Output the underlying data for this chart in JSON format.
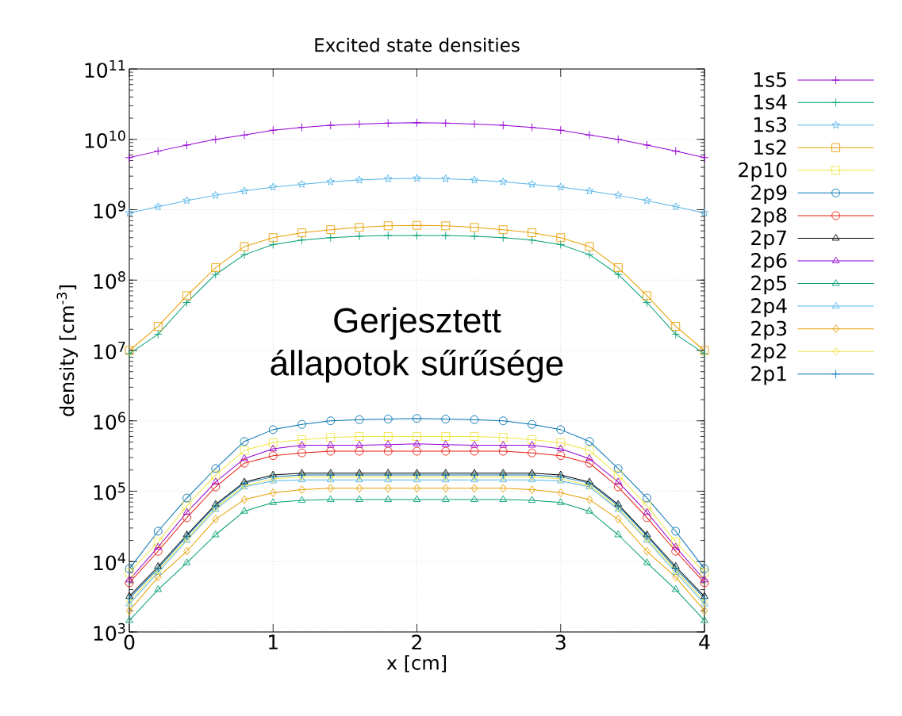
{
  "chart_data": {
    "type": "line",
    "title": "Excited state densities",
    "xlabel": "x [cm]",
    "ylabel": "density [cm$^{-3}$]",
    "annotations": [
      "Gerjesztett állapotok sűrűsége"
    ],
    "x": [
      0,
      0.2,
      0.4,
      0.6,
      0.8,
      1.0,
      1.2,
      1.4,
      1.6,
      1.8,
      2.0,
      2.2,
      2.4,
      2.6,
      2.8,
      3.0,
      3.2,
      3.4,
      3.6,
      3.8,
      4.0
    ],
    "log": "y",
    "grid": true,
    "legend": "right",
    "xlim": [
      0,
      4
    ],
    "xticks": [
      0,
      1,
      2,
      3,
      4
    ],
    "ylim": [
      1000,
      100000000000
    ],
    "yticks": [
      {
        "value": 1000,
        "label": "10$^{3}$"
      },
      {
        "value": 10000,
        "label": "10$^{4}$"
      },
      {
        "value": 100000,
        "label": "10$^{5}$"
      },
      {
        "value": 1000000,
        "label": "10$^{6}$"
      },
      {
        "value": 10000000,
        "label": "10$^{7}$"
      },
      {
        "value": 100000000,
        "label": "10$^{8}$"
      },
      {
        "value": 1000000000,
        "label": "10$^{9}$"
      },
      {
        "value": 10000000000,
        "label": "10$^{10}$"
      },
      {
        "value": 100000000000,
        "label": "10$^{11}$"
      }
    ],
    "series": [
      {
        "name": "1s5",
        "color": "#9400d3",
        "marker": "cross",
        "values": [
          5500000000.0,
          6800000000.0,
          8300000000.0,
          10000000000.0,
          11500000000.0,
          13500000000.0,
          14800000000.0,
          15800000000.0,
          16500000000.0,
          17000000000.0,
          17200000000.0,
          17000000000.0,
          16500000000.0,
          15800000000.0,
          14800000000.0,
          13500000000.0,
          11500000000.0,
          10000000000.0,
          8300000000.0,
          6800000000.0,
          5500000000.0
        ]
      },
      {
        "name": "1s4",
        "color": "#009e73",
        "marker": "cross",
        "values": [
          9000000.0,
          17000000.0,
          48000000.0,
          120000000.0,
          230000000.0,
          320000000.0,
          370000000.0,
          400000000.0,
          420000000.0,
          430000000.0,
          430000000.0,
          430000000.0,
          420000000.0,
          400000000.0,
          370000000.0,
          320000000.0,
          230000000.0,
          120000000.0,
          48000000.0,
          17000000.0,
          9000000.0
        ]
      },
      {
        "name": "1s3",
        "color": "#56b4e9",
        "marker": "star",
        "values": [
          900000000.0,
          1100000000.0,
          1350000000.0,
          1600000000.0,
          1850000000.0,
          2100000000.0,
          2300000000.0,
          2500000000.0,
          2650000000.0,
          2750000000.0,
          2800000000.0,
          2750000000.0,
          2650000000.0,
          2500000000.0,
          2300000000.0,
          2100000000.0,
          1850000000.0,
          1600000000.0,
          1350000000.0,
          1100000000.0,
          900000000.0
        ]
      },
      {
        "name": "1s2",
        "color": "#e69f00",
        "marker": "square",
        "values": [
          10000000.0,
          22000000.0,
          60000000.0,
          150000000.0,
          300000000.0,
          400000000.0,
          470000000.0,
          520000000.0,
          560000000.0,
          590000000.0,
          600000000.0,
          590000000.0,
          560000000.0,
          520000000.0,
          470000000.0,
          400000000.0,
          300000000.0,
          150000000.0,
          60000000.0,
          22000000.0,
          10000000.0
        ]
      },
      {
        "name": "2p10",
        "color": "#f0e442",
        "marker": "square",
        "values": [
          7000.0,
          19000.0,
          62000.0,
          170000.0,
          380000.0,
          490000.0,
          540000.0,
          580000.0,
          600000.0,
          600000.0,
          600000.0,
          600000.0,
          600000.0,
          580000.0,
          540000.0,
          490000.0,
          380000.0,
          170000.0,
          62000.0,
          19000.0,
          7000.0
        ]
      },
      {
        "name": "2p9",
        "color": "#0072b2",
        "marker": "circle",
        "values": [
          7900.0,
          27000.0,
          80000.0,
          210000.0,
          510000.0,
          750000.0,
          890000.0,
          1000000.0,
          1040000.0,
          1060000.0,
          1080000.0,
          1060000.0,
          1040000.0,
          1000000.0,
          890000.0,
          750000.0,
          510000.0,
          210000.0,
          80000.0,
          27000.0,
          7900.0
        ]
      },
      {
        "name": "2p8",
        "color": "#e51e10",
        "marker": "circle",
        "values": [
          5000.0,
          14000.0,
          42000.0,
          115000.0,
          250000.0,
          320000.0,
          350000.0,
          370000.0,
          370000.0,
          370000.0,
          370000.0,
          370000.0,
          370000.0,
          370000.0,
          350000.0,
          320000.0,
          250000.0,
          115000.0,
          42000.0,
          14000.0,
          5000.0
        ]
      },
      {
        "name": "2p7",
        "color": "#000000",
        "marker": "triangle",
        "values": [
          3200.0,
          8500.0,
          24000.0,
          65000.0,
          135000.0,
          170000.0,
          180000.0,
          180000.0,
          180000.0,
          180000.0,
          180000.0,
          180000.0,
          180000.0,
          180000.0,
          180000.0,
          170000.0,
          135000.0,
          65000.0,
          24000.0,
          8500.0,
          3200.0
        ]
      },
      {
        "name": "2p6",
        "color": "#9400d3",
        "marker": "triangle",
        "values": [
          5500.0,
          16000.0,
          50000.0,
          135000.0,
          290000.0,
          400000.0,
          450000.0,
          450000.0,
          450000.0,
          460000.0,
          470000.0,
          460000.0,
          450000.0,
          450000.0,
          450000.0,
          400000.0,
          290000.0,
          135000.0,
          50000.0,
          16000.0,
          5500.0
        ]
      },
      {
        "name": "2p5",
        "color": "#009e73",
        "marker": "triangle",
        "values": [
          1450.0,
          4000.0,
          9600.0,
          24000.0,
          52000.0,
          69000.0,
          74000.0,
          76000.0,
          76000.0,
          76000.0,
          76000.0,
          76000.0,
          76000.0,
          76000.0,
          74000.0,
          69000.0,
          52000.0,
          24000.0,
          9600.0,
          4000.0,
          1450.0
        ]
      },
      {
        "name": "2p4",
        "color": "#56b4e9",
        "marker": "triangle",
        "values": [
          2500.0,
          7000.0,
          20000.0,
          55000.0,
          115000.0,
          140000.0,
          145000.0,
          145000.0,
          145000.0,
          145000.0,
          145000.0,
          145000.0,
          145000.0,
          145000.0,
          145000.0,
          140000.0,
          115000.0,
          55000.0,
          20000.0,
          7000.0,
          2500.0
        ]
      },
      {
        "name": "2p3",
        "color": "#e69f00",
        "marker": "diamond",
        "values": [
          2000.0,
          6000.0,
          14000.0,
          40000.0,
          76000.0,
          95000.0,
          105000.0,
          110000.0,
          110000.0,
          110000.0,
          110000.0,
          110000.0,
          110000.0,
          110000.0,
          105000.0,
          95000.0,
          76000.0,
          40000.0,
          14000.0,
          6000.0,
          2000.0
        ]
      },
      {
        "name": "2p2",
        "color": "#f0e442",
        "marker": "diamond",
        "values": [
          2700.0,
          7500.0,
          21000.0,
          58000.0,
          120000.0,
          150000.0,
          160000.0,
          160000.0,
          160000.0,
          160000.0,
          160000.0,
          160000.0,
          160000.0,
          160000.0,
          160000.0,
          150000.0,
          120000.0,
          58000.0,
          21000.0,
          7500.0,
          2700.0
        ]
      },
      {
        "name": "2p1",
        "color": "#0072b2",
        "marker": "cross",
        "values": [
          3000.0,
          8000.0,
          23000.0,
          62000.0,
          130000.0,
          160000.0,
          170000.0,
          170000.0,
          170000.0,
          170000.0,
          170000.0,
          170000.0,
          170000.0,
          170000.0,
          170000.0,
          160000.0,
          130000.0,
          62000.0,
          23000.0,
          8000.0,
          3000.0
        ]
      }
    ]
  }
}
